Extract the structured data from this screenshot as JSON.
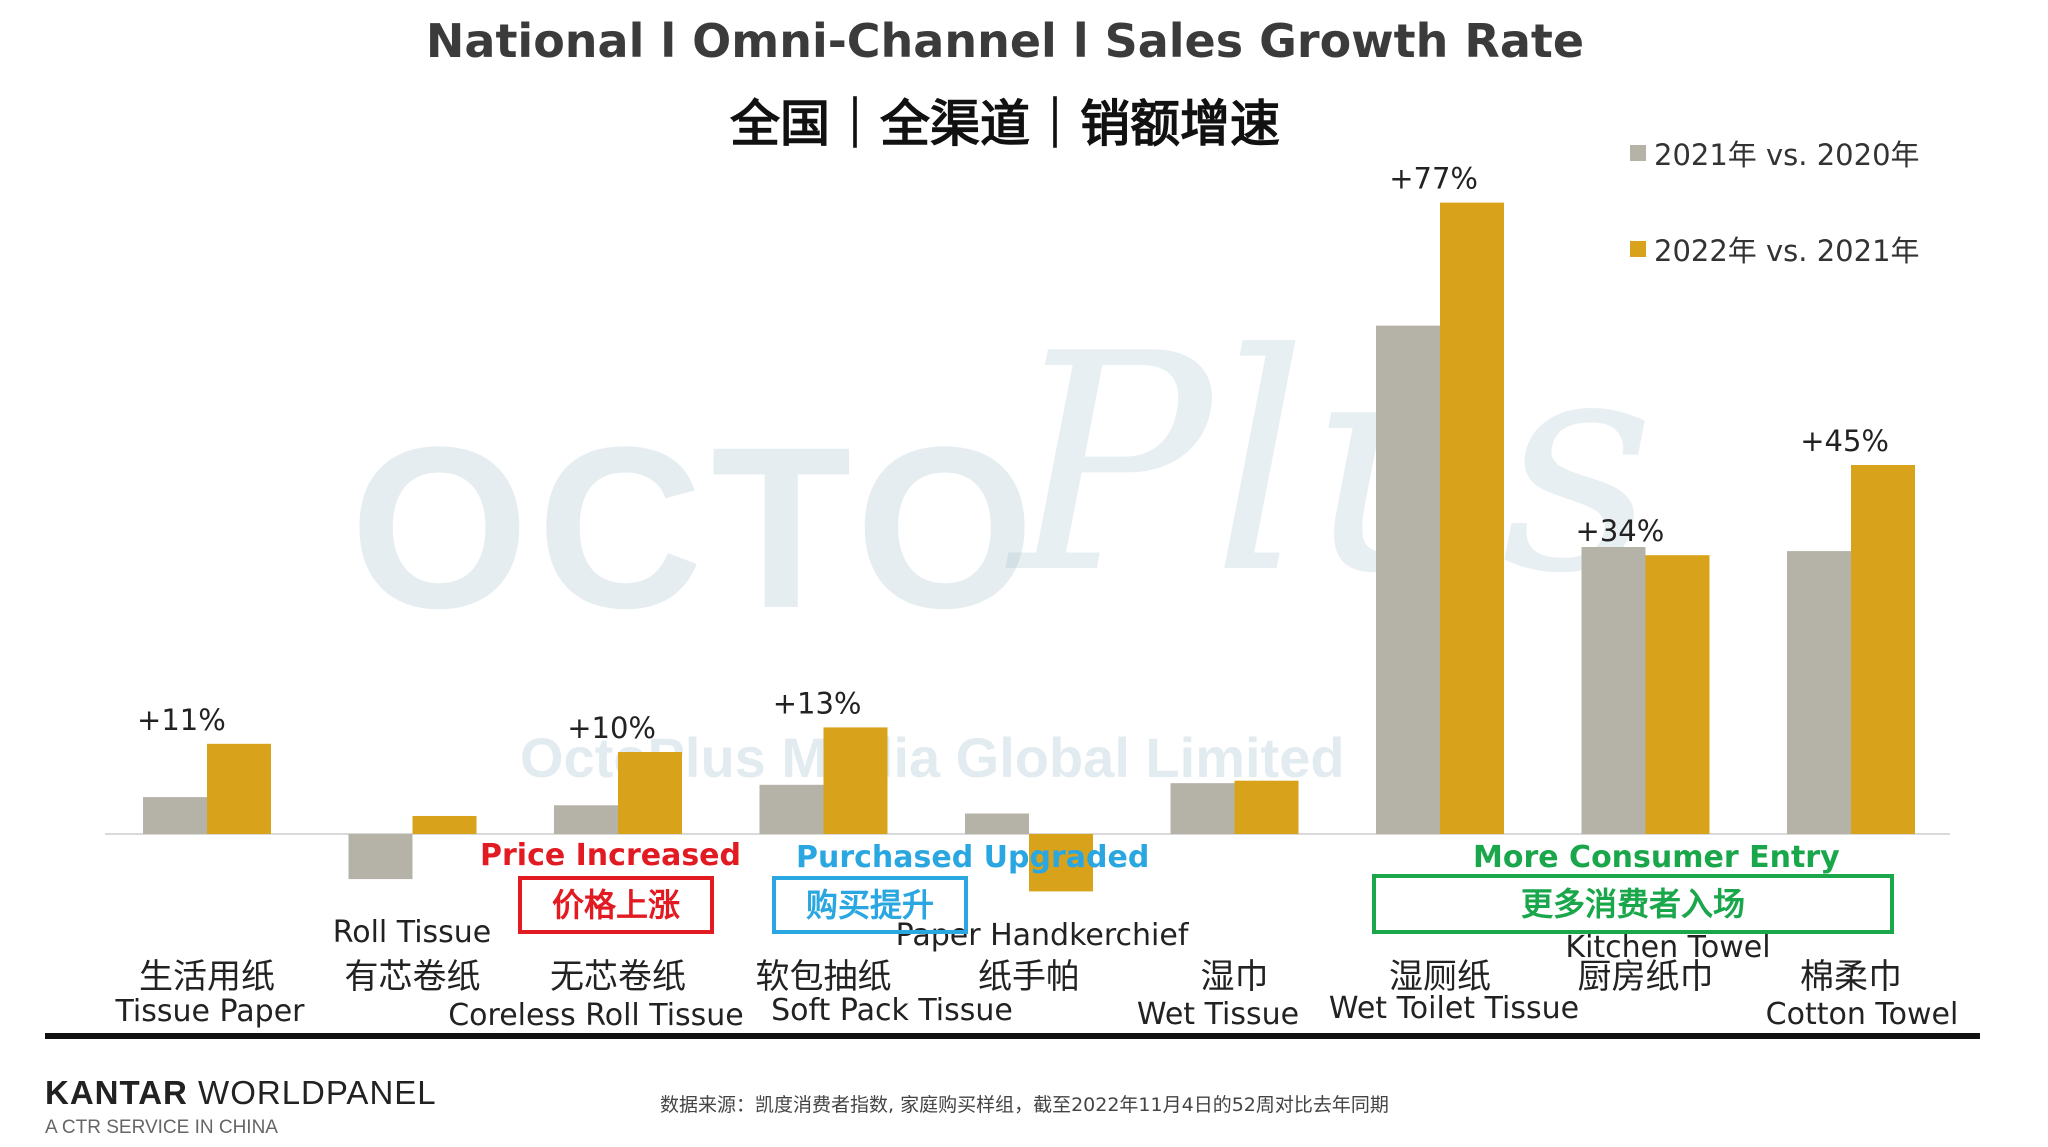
{
  "title_en": "National l Omni-Channel l Sales Growth Rate",
  "title_cn": "全国｜全渠道｜销额增速",
  "watermark": {
    "brand_main": "OCTO",
    "brand_script": "Plus",
    "company": "OctoPlus Media Global Limited"
  },
  "colors": {
    "series_2021": "#b5b3a8",
    "series_2022": "#d9a21b",
    "red": "#e21b23",
    "blue": "#2aa7e0",
    "green": "#1aa64a"
  },
  "chart_data": {
    "type": "bar",
    "categories_cn": [
      "生活用纸",
      "有芯卷纸",
      "无芯卷纸",
      "软包抽纸",
      "纸手帕",
      "湿巾",
      "湿厕纸",
      "厨房纸巾",
      "棉柔巾"
    ],
    "categories_en": [
      "Tissue Paper",
      "Roll Tissue",
      "Coreless Roll Tissue",
      "Soft Pack Tissue",
      "Paper Handkerchief",
      "Wet Tissue",
      "Wet Toilet Tissue",
      "Kitchen Towel",
      "Cotton Towel"
    ],
    "series": [
      {
        "name": "2021年 vs. 2020年",
        "values": [
          4.5,
          -5.5,
          3.5,
          6.0,
          2.5,
          6.2,
          62,
          35,
          34.5
        ]
      },
      {
        "name": "2022年 vs. 2021年",
        "values": [
          11,
          2.2,
          10,
          13,
          -7,
          6.5,
          77,
          34,
          45
        ]
      }
    ],
    "data_labels": [
      "+11%",
      "",
      "+10%",
      "+13%",
      "",
      "",
      "+77%",
      "+34%",
      "+45%"
    ],
    "ylim": [
      -10,
      80
    ]
  },
  "annotations": {
    "price_en": "Price Increased",
    "price_cn": "价格上涨",
    "upgrade_en": "Purchased Upgraded",
    "upgrade_cn": "购买提升",
    "entry_en": "More Consumer Entry",
    "entry_cn": "更多消费者入场"
  },
  "footer": {
    "brand_bold": "KANTAR",
    "brand_rest": " WORLDPANEL",
    "brand_sub": "A CTR SERVICE IN CHINA",
    "source": "数据来源：凯度消费者指数, 家庭购买样组，截至2022年11月4日的52周对比去年同期"
  }
}
